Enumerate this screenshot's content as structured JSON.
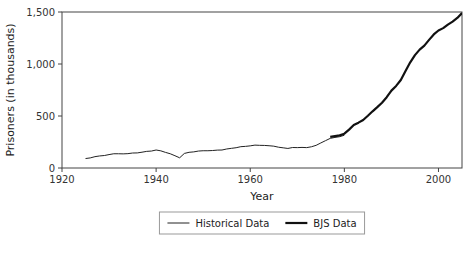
{
  "chart_data": {
    "type": "line",
    "x_label": "Year",
    "y_label": "Prisoners (in thousands)",
    "series": [
      {
        "name": "Historical Data",
        "color": "#222222",
        "line_style": "solid",
        "x": [
          1925,
          1926,
          1927,
          1928,
          1929,
          1930,
          1931,
          1932,
          1933,
          1934,
          1935,
          1936,
          1937,
          1938,
          1939,
          1940,
          1941,
          1942,
          1943,
          1944,
          1945,
          1946,
          1947,
          1948,
          1949,
          1950,
          1951,
          1952,
          1953,
          1954,
          1955,
          1956,
          1957,
          1958,
          1959,
          1960,
          1961,
          1962,
          1963,
          1964,
          1965,
          1966,
          1967,
          1968,
          1969,
          1970,
          1971,
          1972,
          1973,
          1974,
          1975,
          1976,
          1977,
          1978,
          1979,
          1980
        ],
        "values": [
          91,
          97,
          109,
          116,
          120,
          129,
          137,
          137,
          136,
          138,
          144,
          145,
          152,
          160,
          163,
          173,
          165,
          150,
          137,
          118,
          98,
          140,
          151,
          155,
          163,
          166,
          166,
          168,
          172,
          173,
          183,
          189,
          195,
          205,
          208,
          213,
          220,
          218,
          217,
          214,
          210,
          200,
          194,
          188,
          197,
          196,
          198,
          196,
          204,
          218,
          241,
          263,
          285,
          294,
          301,
          315
        ]
      },
      {
        "name": "BJS Data",
        "color": "#111111",
        "line_style": "solid",
        "x": [
          1977,
          1978,
          1979,
          1980,
          1981,
          1982,
          1983,
          1984,
          1985,
          1986,
          1987,
          1988,
          1989,
          1990,
          1991,
          1992,
          1993,
          1994,
          1995,
          1996,
          1997,
          1998,
          1999,
          2000,
          2001,
          2002,
          2003,
          2004,
          2005
        ],
        "values": [
          300,
          307,
          314,
          330,
          369,
          413,
          436,
          462,
          502,
          545,
          585,
          628,
          681,
          744,
          789,
          846,
          932,
          1016,
          1085,
          1138,
          1177,
          1232,
          1284,
          1322,
          1345,
          1379,
          1408,
          1443,
          1490
        ]
      }
    ],
    "xlim": [
      1920,
      2005
    ],
    "ylim": [
      0,
      1500
    ],
    "xticks": [
      1920,
      1940,
      1960,
      1980,
      2000
    ],
    "yticks": [
      0,
      500,
      {
        "value": 1000,
        "label": "1,000"
      },
      {
        "value": 1500,
        "label": "1,500"
      }
    ],
    "grid": false,
    "legend": "bottom"
  }
}
